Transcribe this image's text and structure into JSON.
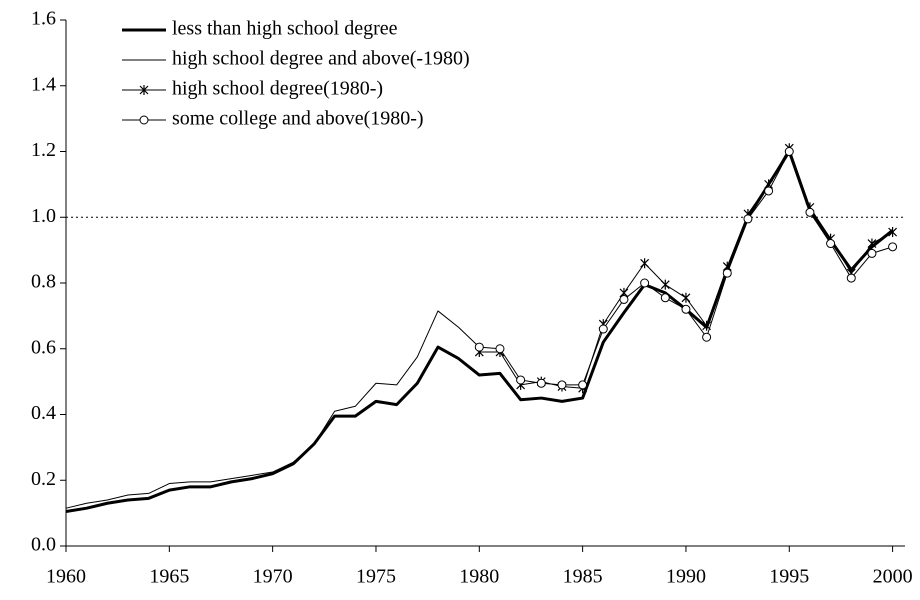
{
  "chart_data": {
    "type": "line",
    "x": [
      1960,
      1961,
      1962,
      1963,
      1964,
      1965,
      1966,
      1967,
      1968,
      1969,
      1970,
      1971,
      1972,
      1973,
      1974,
      1975,
      1976,
      1977,
      1978,
      1979,
      1980,
      1981,
      1982,
      1983,
      1984,
      1985,
      1986,
      1987,
      1988,
      1989,
      1990,
      1991,
      1992,
      1993,
      1994,
      1995,
      1996,
      1997,
      1998,
      1999,
      2000
    ],
    "series": [
      {
        "name": "less than high school degree",
        "color": "#000000",
        "linewidth": 3,
        "marker": "none",
        "values": [
          0.105,
          0.115,
          0.13,
          0.14,
          0.145,
          0.17,
          0.18,
          0.18,
          0.195,
          0.205,
          0.22,
          0.25,
          0.31,
          0.395,
          0.395,
          0.44,
          0.43,
          0.495,
          0.605,
          0.57,
          0.52,
          0.525,
          0.445,
          0.45,
          0.44,
          0.45,
          0.62,
          0.71,
          0.795,
          0.77,
          0.72,
          0.665,
          0.84,
          1.0,
          1.1,
          1.2,
          1.02,
          0.93,
          0.84,
          0.91,
          0.96
        ]
      },
      {
        "name": "high school degree and above(-1980)",
        "color": "#000000",
        "linewidth": 1,
        "marker": "none",
        "values": [
          0.115,
          0.13,
          0.14,
          0.155,
          0.16,
          0.19,
          0.195,
          0.195,
          0.205,
          0.215,
          0.225,
          0.255,
          0.31,
          0.41,
          0.425,
          0.495,
          0.49,
          0.575,
          0.715,
          0.665,
          0.605,
          null,
          null,
          null,
          null,
          null,
          null,
          null,
          null,
          null,
          null,
          null,
          null,
          null,
          null,
          null,
          null,
          null,
          null,
          null,
          null
        ]
      },
      {
        "name": "high school degree(1980-)",
        "color": "#000000",
        "linewidth": 1,
        "marker": "x",
        "values": [
          null,
          null,
          null,
          null,
          null,
          null,
          null,
          null,
          null,
          null,
          null,
          null,
          null,
          null,
          null,
          null,
          null,
          null,
          null,
          null,
          0.59,
          0.59,
          0.49,
          0.5,
          0.485,
          0.48,
          0.675,
          0.77,
          0.86,
          0.795,
          0.755,
          0.67,
          0.85,
          1.01,
          1.1,
          1.21,
          1.03,
          0.935,
          0.83,
          0.92,
          0.955
        ]
      },
      {
        "name": "some college and above(1980-)",
        "color": "#000000",
        "linewidth": 1,
        "marker": "circle",
        "values": [
          null,
          null,
          null,
          null,
          null,
          null,
          null,
          null,
          null,
          null,
          null,
          null,
          null,
          null,
          null,
          null,
          null,
          null,
          null,
          null,
          0.605,
          0.6,
          0.505,
          0.495,
          0.49,
          0.49,
          0.66,
          0.75,
          0.8,
          0.755,
          0.72,
          0.635,
          0.83,
          0.995,
          1.08,
          1.2,
          1.015,
          0.92,
          0.815,
          0.89,
          0.91
        ]
      }
    ],
    "xlim": [
      1960,
      2000.6
    ],
    "ylim": [
      0,
      1.6
    ],
    "xticks": [
      1960,
      1965,
      1970,
      1975,
      1980,
      1985,
      1990,
      1995,
      2000
    ],
    "yticks": [
      {
        "value": 0,
        "label": "0.0"
      },
      0.2,
      0.4,
      0.6,
      0.8,
      {
        "value": 1,
        "label": "1.0"
      },
      1.2,
      1.4,
      1.6
    ],
    "reference_line": {
      "value": 1,
      "style": "dotted"
    },
    "legend": "upper left",
    "grid": false
  }
}
